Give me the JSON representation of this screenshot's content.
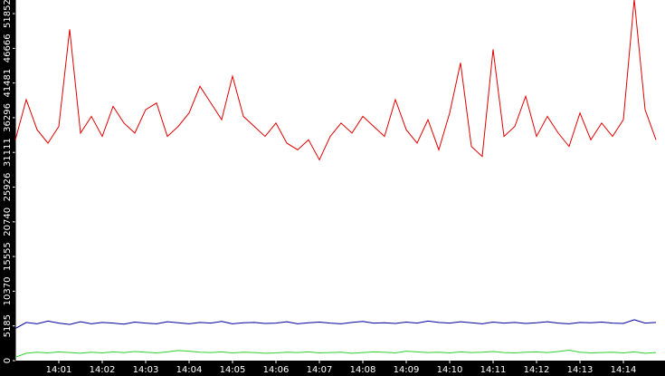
{
  "chart_data": {
    "type": "line",
    "categories": [
      null,
      null,
      null,
      null,
      "14:01",
      null,
      null,
      null,
      "14:02",
      null,
      null,
      null,
      "14:03",
      null,
      null,
      null,
      "14:04",
      null,
      null,
      null,
      "14:05",
      null,
      null,
      null,
      "14:06",
      null,
      null,
      null,
      "14:07",
      null,
      null,
      null,
      "14:08",
      null,
      null,
      null,
      "14:09",
      null,
      null,
      null,
      "14:10",
      null,
      null,
      null,
      "14:11",
      null,
      null,
      null,
      "14:12",
      null,
      null,
      null,
      "14:13",
      null,
      null,
      null,
      "14:14",
      null,
      null,
      null
    ],
    "series": [
      {
        "color": "#e00000",
        "values": [
          33000,
          39000,
          34500,
          32500,
          35000,
          49500,
          34000,
          36500,
          33500,
          38000,
          35500,
          34000,
          37500,
          38500,
          33500,
          35000,
          37000,
          41000,
          38500,
          36000,
          42500,
          36500,
          35000,
          33500,
          35500,
          32500,
          31500,
          33000,
          30000,
          33500,
          35500,
          34000,
          36500,
          35000,
          33500,
          39000,
          34500,
          32500,
          36000,
          31500,
          37000,
          44500,
          32000,
          30500,
          46500,
          33500,
          35000,
          39500,
          33500,
          36500,
          34000,
          32000,
          37000,
          33000,
          35500,
          33500,
          36000,
          54000,
          37500,
          33000
        ]
      },
      {
        "color": "#0000a0",
        "values": [
          4800,
          5700,
          5500,
          5900,
          5600,
          5400,
          5800,
          5500,
          5700,
          5600,
          5450,
          5750,
          5600,
          5500,
          5800,
          5650,
          5500,
          5700,
          5600,
          5850,
          5500,
          5650,
          5700,
          5550,
          5600,
          5800,
          5500,
          5650,
          5750,
          5600,
          5500,
          5700,
          5850,
          5600,
          5650,
          5550,
          5750,
          5600,
          5900,
          5700,
          5600,
          5800,
          5650,
          5500,
          5750,
          5600,
          5700,
          5550,
          5650,
          5800,
          5600,
          5500,
          5700,
          5650,
          5750,
          5600,
          5550,
          6100,
          5600,
          5700
        ]
      },
      {
        "color": "#30d030",
        "values": [
          500,
          1100,
          1250,
          1150,
          1300,
          1200,
          1100,
          1250,
          1150,
          1300,
          1200,
          1350,
          1250,
          1150,
          1300,
          1500,
          1400,
          1250,
          1200,
          1300,
          1150,
          1250,
          1200,
          1100,
          1150,
          1250,
          1200,
          1300,
          1150,
          1200,
          1250,
          1100,
          1200,
          1300,
          1250,
          1150,
          1400,
          1300,
          1200,
          1250,
          1150,
          1300,
          1200,
          1250,
          1350,
          1200,
          1150,
          1250,
          1300,
          1200,
          1350,
          1550,
          1250,
          1150,
          1200,
          1250,
          1150,
          1300,
          1100,
          1200
        ]
      }
    ],
    "ylim": [
      0,
      53888
    ],
    "yticks": [
      0,
      5185,
      10370,
      15555,
      20740,
      25926,
      31111,
      36296,
      41481,
      46666,
      51852
    ]
  }
}
